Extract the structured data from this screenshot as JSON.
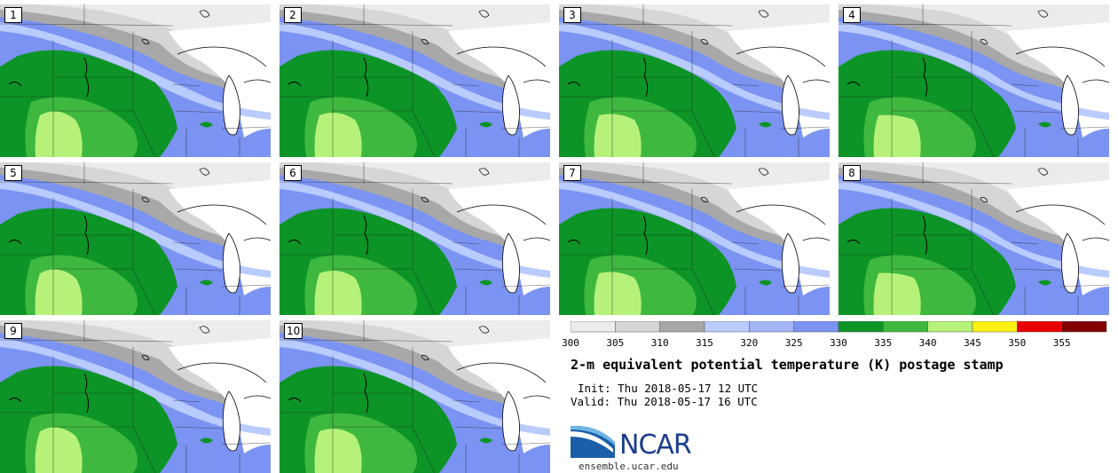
{
  "panels": [
    {
      "label": "1"
    },
    {
      "label": "2"
    },
    {
      "label": "3"
    },
    {
      "label": "4"
    },
    {
      "label": "5"
    },
    {
      "label": "6"
    },
    {
      "label": "7"
    },
    {
      "label": "8"
    },
    {
      "label": "9"
    },
    {
      "label": "10"
    }
  ],
  "colorbar": {
    "bins": [
      "#ececec",
      "#d6d6d6",
      "#a8a8a8",
      "#b9cbff",
      "#a4b6f8",
      "#7b93f2",
      "#0c9426",
      "#3fb83f",
      "#b6f279",
      "#fbf213",
      "#e80000",
      "#820000"
    ],
    "labels": [
      "300",
      "305",
      "310",
      "315",
      "320",
      "325",
      "330",
      "335",
      "340",
      "345",
      "350",
      "355"
    ]
  },
  "title": "2-m equivalent potential temperature (K) postage stamp",
  "init": "Init: Thu 2018-05-17 12 UTC",
  "valid": "Valid: Thu 2018-05-17 16 UTC",
  "logo": {
    "text": "NCAR",
    "site": "ensemble.ucar.edu"
  }
}
